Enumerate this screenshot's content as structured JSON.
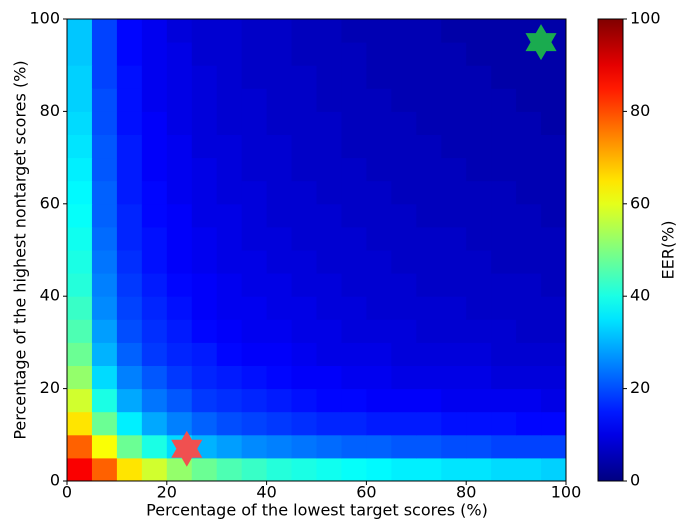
{
  "chart_data": {
    "type": "heatmap",
    "xlabel": "Percentage of the lowest target scores (%)",
    "ylabel": "Percentage of the highest nontarget scores (%)",
    "xbins": [
      0,
      5,
      10,
      15,
      20,
      25,
      30,
      35,
      40,
      45,
      50,
      55,
      60,
      65,
      70,
      75,
      80,
      85,
      90,
      95,
      100
    ],
    "ybins": [
      0,
      5,
      10,
      15,
      20,
      25,
      30,
      35,
      40,
      45,
      50,
      55,
      60,
      65,
      70,
      75,
      80,
      85,
      90,
      95,
      100
    ],
    "values": [
      [
        88,
        78,
        65,
        58,
        52,
        48,
        45,
        43,
        41,
        40,
        39,
        38,
        37,
        36,
        36,
        35,
        35,
        34,
        34,
        33
      ],
      [
        78,
        62,
        48,
        40,
        34,
        30,
        28,
        26,
        25,
        24,
        23,
        22,
        22,
        21,
        21,
        20,
        20,
        19,
        19,
        19
      ],
      [
        65,
        48,
        36,
        29,
        25,
        22,
        20,
        19,
        18,
        17,
        16,
        16,
        15,
        15,
        15,
        14,
        14,
        14,
        13,
        13
      ],
      [
        58,
        40,
        29,
        24,
        21,
        18,
        17,
        16,
        15,
        14,
        13,
        13,
        12,
        12,
        12,
        11,
        11,
        11,
        11,
        10
      ],
      [
        52,
        34,
        25,
        21,
        18,
        16,
        15,
        14,
        13,
        12,
        12,
        11,
        11,
        10,
        10,
        10,
        10,
        9,
        9,
        9
      ],
      [
        48,
        30,
        22,
        18,
        16,
        15,
        13,
        12,
        12,
        11,
        10,
        10,
        10,
        9,
        9,
        9,
        9,
        8,
        8,
        8
      ],
      [
        45,
        28,
        20,
        17,
        15,
        13,
        12,
        11,
        11,
        10,
        10,
        9,
        9,
        9,
        8,
        8,
        8,
        8,
        7,
        7
      ],
      [
        43,
        26,
        19,
        16,
        14,
        12,
        11,
        11,
        10,
        10,
        9,
        9,
        8,
        8,
        8,
        8,
        7,
        7,
        7,
        7
      ],
      [
        41,
        25,
        18,
        15,
        13,
        12,
        11,
        10,
        10,
        9,
        9,
        8,
        8,
        8,
        7,
        7,
        7,
        7,
        7,
        6
      ],
      [
        40,
        24,
        17,
        14,
        12,
        11,
        10,
        10,
        9,
        9,
        8,
        8,
        8,
        7,
        7,
        7,
        7,
        6,
        6,
        6
      ],
      [
        39,
        23,
        16,
        14,
        12,
        11,
        10,
        9,
        9,
        8,
        8,
        8,
        7,
        7,
        7,
        7,
        6,
        6,
        6,
        6
      ],
      [
        38,
        22,
        16,
        13,
        12,
        10,
        10,
        9,
        8,
        8,
        8,
        7,
        7,
        7,
        6,
        6,
        6,
        6,
        6,
        5
      ],
      [
        37,
        22,
        15,
        13,
        11,
        10,
        9,
        9,
        8,
        8,
        7,
        7,
        7,
        6,
        6,
        6,
        6,
        6,
        5,
        5
      ],
      [
        36,
        21,
        15,
        12,
        11,
        10,
        9,
        8,
        8,
        7,
        7,
        7,
        6,
        6,
        6,
        6,
        5,
        5,
        5,
        5
      ],
      [
        35,
        21,
        15,
        12,
        11,
        9,
        9,
        8,
        8,
        7,
        7,
        6,
        6,
        6,
        6,
        5,
        5,
        5,
        5,
        5
      ],
      [
        34,
        20,
        14,
        12,
        10,
        9,
        8,
        8,
        7,
        7,
        7,
        6,
        6,
        6,
        5,
        5,
        5,
        5,
        5,
        4
      ],
      [
        33,
        20,
        14,
        11,
        10,
        9,
        8,
        8,
        7,
        7,
        6,
        6,
        6,
        5,
        5,
        5,
        5,
        5,
        4,
        4
      ],
      [
        33,
        19,
        14,
        11,
        10,
        9,
        8,
        7,
        7,
        7,
        6,
        6,
        5,
        5,
        5,
        5,
        5,
        4,
        4,
        4
      ],
      [
        32,
        19,
        13,
        11,
        10,
        8,
        8,
        7,
        7,
        6,
        6,
        6,
        5,
        5,
        5,
        5,
        4,
        4,
        4,
        4
      ],
      [
        32,
        19,
        13,
        11,
        9,
        8,
        8,
        7,
        7,
        6,
        6,
        5,
        5,
        5,
        5,
        4,
        4,
        4,
        4,
        4
      ]
    ],
    "xlim": [
      0,
      100
    ],
    "ylim": [
      0,
      100
    ],
    "xticks": [
      0,
      20,
      40,
      60,
      80,
      100
    ],
    "yticks": [
      0,
      20,
      40,
      60,
      80,
      100
    ],
    "markers": [
      {
        "x": 24,
        "y": 7,
        "color": "#f05050"
      },
      {
        "x": 95,
        "y": 95,
        "color": "#1aab4f"
      }
    ],
    "colorbar": {
      "label": "EER(%)",
      "colormap": "jet",
      "lim": [
        0,
        100
      ],
      "ticks": [
        0,
        20,
        40,
        60,
        80,
        100
      ]
    }
  }
}
